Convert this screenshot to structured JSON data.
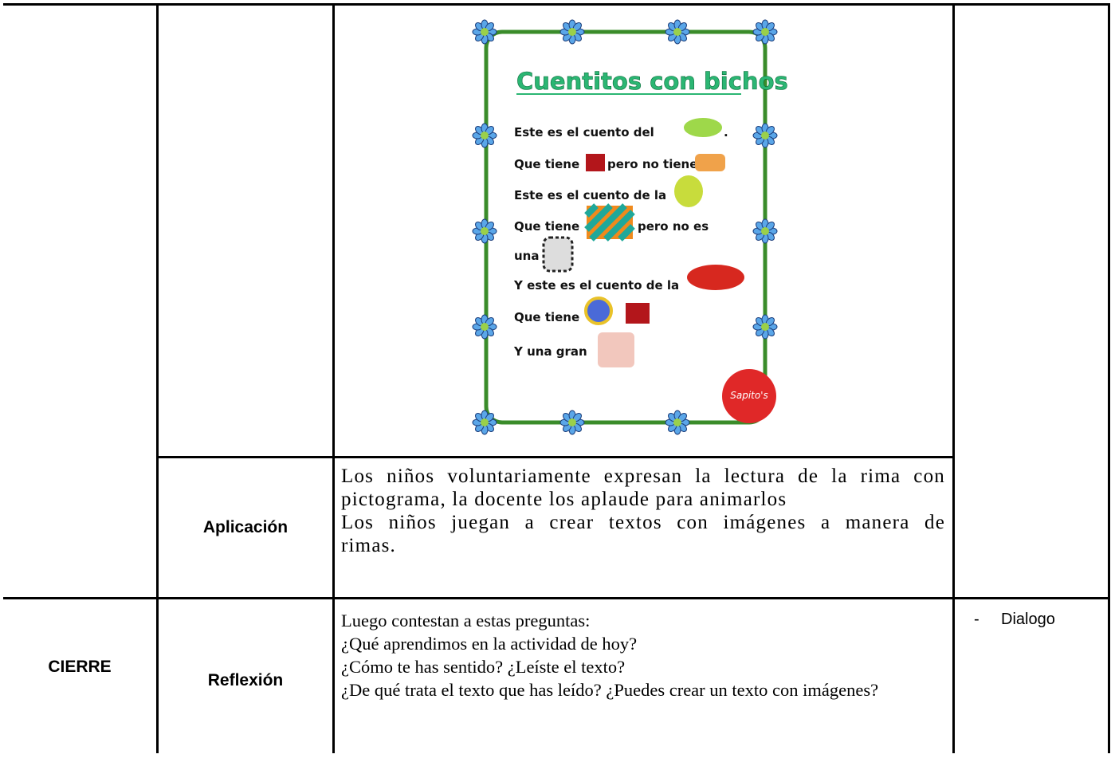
{
  "poster": {
    "title": "Cuentitos con bichos",
    "lines": [
      "Este es el cuento del",
      ".",
      "Que tiene",
      "pero no tiene",
      "Este es el cuento de la",
      "Que tiene",
      "pero no es",
      "una",
      "Y este es el cuento de la",
      "Que tiene",
      "Y una gran"
    ],
    "logo": "Sapito's"
  },
  "aplicacion": {
    "phase": "Aplicación",
    "text": [
      "Los niños voluntariamente expresan la lectura de la rima con pictograma, la docente los aplaude para animarlos",
      "Los niños juegan a crear textos con imágenes a manera de rimas."
    ]
  },
  "cierre": {
    "stage": "CIERRE",
    "phase": "Reflexión",
    "text": [
      "Luego contestan a estas preguntas:",
      "¿Qué aprendimos en la actividad de hoy?",
      "¿Cómo te has sentido? ¿Leíste el texto?",
      "¿De qué trata el texto que has leído? ¿Puedes crear un texto con imágenes?"
    ],
    "resources": [
      "Dialogo"
    ]
  }
}
